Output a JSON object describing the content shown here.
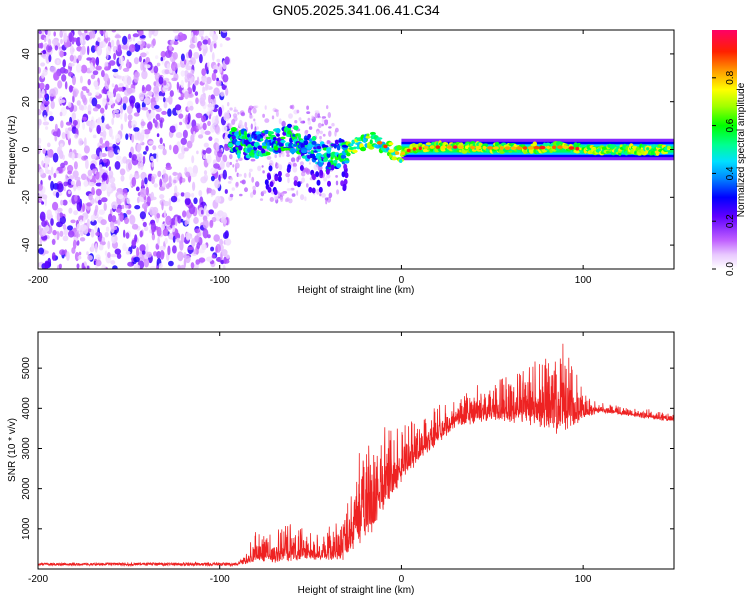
{
  "page": {
    "title": "GN05.2025.341.06.41.C34"
  },
  "chart_data": [
    {
      "type": "heatmap",
      "name": "spectrogram",
      "xlabel": "Height of straight line (km)",
      "ylabel": "Frequency (Hz)",
      "xlim": [
        -200,
        150
      ],
      "ylim": [
        -50,
        50
      ],
      "xticks": [
        -200,
        -100,
        0,
        100
      ],
      "yticks": [
        -40,
        -20,
        0,
        20,
        40
      ],
      "noise_region_x": [
        -200,
        -95
      ],
      "signal_line_y": 0,
      "signal_track": [
        {
          "x": -93,
          "y": 3
        },
        {
          "x": -85,
          "y": 2
        },
        {
          "x": -75,
          "y": 3
        },
        {
          "x": -65,
          "y": 5
        },
        {
          "x": -58,
          "y": 4
        },
        {
          "x": -50,
          "y": 0
        },
        {
          "x": -45,
          "y": -2
        },
        {
          "x": -40,
          "y": -4
        },
        {
          "x": -35,
          "y": -2
        },
        {
          "x": -28,
          "y": 0
        },
        {
          "x": -22,
          "y": 3
        },
        {
          "x": -15,
          "y": 4
        },
        {
          "x": -10,
          "y": 2
        },
        {
          "x": -5,
          "y": -1
        },
        {
          "x": 0,
          "y": -2
        },
        {
          "x": 5,
          "y": 0
        },
        {
          "x": 15,
          "y": 1
        },
        {
          "x": 30,
          "y": 1
        },
        {
          "x": 60,
          "y": 0.5
        },
        {
          "x": 90,
          "y": 1
        },
        {
          "x": 100,
          "y": 0
        },
        {
          "x": 150,
          "y": 0
        }
      ],
      "colorbar": {
        "label": "Normalized spectral amplitude",
        "range": [
          0,
          1
        ],
        "ticks": [
          0.0,
          0.2,
          0.4,
          0.6,
          0.8
        ],
        "tick_labels": [
          "0.0",
          "0.2",
          "0.4",
          "0.6",
          "0.8"
        ]
      }
    },
    {
      "type": "line",
      "name": "snr",
      "xlabel": "Height of straight line (km)",
      "ylabel": "SNR (10 * v/v)",
      "xlim": [
        -200,
        150
      ],
      "ylim": [
        0,
        5900
      ],
      "xticks": [
        -200,
        -100,
        0,
        100
      ],
      "yticks": [
        1000,
        2000,
        3000,
        4000,
        5000
      ],
      "color": "#ee2222",
      "envelope": [
        {
          "x": -200,
          "base": 120,
          "spread": 60
        },
        {
          "x": -90,
          "base": 120,
          "spread": 80
        },
        {
          "x": -80,
          "base": 300,
          "spread": 700
        },
        {
          "x": -60,
          "base": 400,
          "spread": 900
        },
        {
          "x": -42,
          "base": 350,
          "spread": 600
        },
        {
          "x": -30,
          "base": 500,
          "spread": 1200
        },
        {
          "x": -22,
          "base": 1200,
          "spread": 2600
        },
        {
          "x": -16,
          "base": 1400,
          "spread": 2000
        },
        {
          "x": -5,
          "base": 2200,
          "spread": 1500
        },
        {
          "x": 10,
          "base": 2900,
          "spread": 900
        },
        {
          "x": 30,
          "base": 3700,
          "spread": 700
        },
        {
          "x": 50,
          "base": 3900,
          "spread": 900
        },
        {
          "x": 70,
          "base": 3900,
          "spread": 1300
        },
        {
          "x": 90,
          "base": 3800,
          "spread": 2000
        },
        {
          "x": 100,
          "base": 3900,
          "spread": 600
        },
        {
          "x": 110,
          "base": 3950,
          "spread": 200
        },
        {
          "x": 150,
          "base": 3700,
          "spread": 200
        }
      ]
    }
  ]
}
